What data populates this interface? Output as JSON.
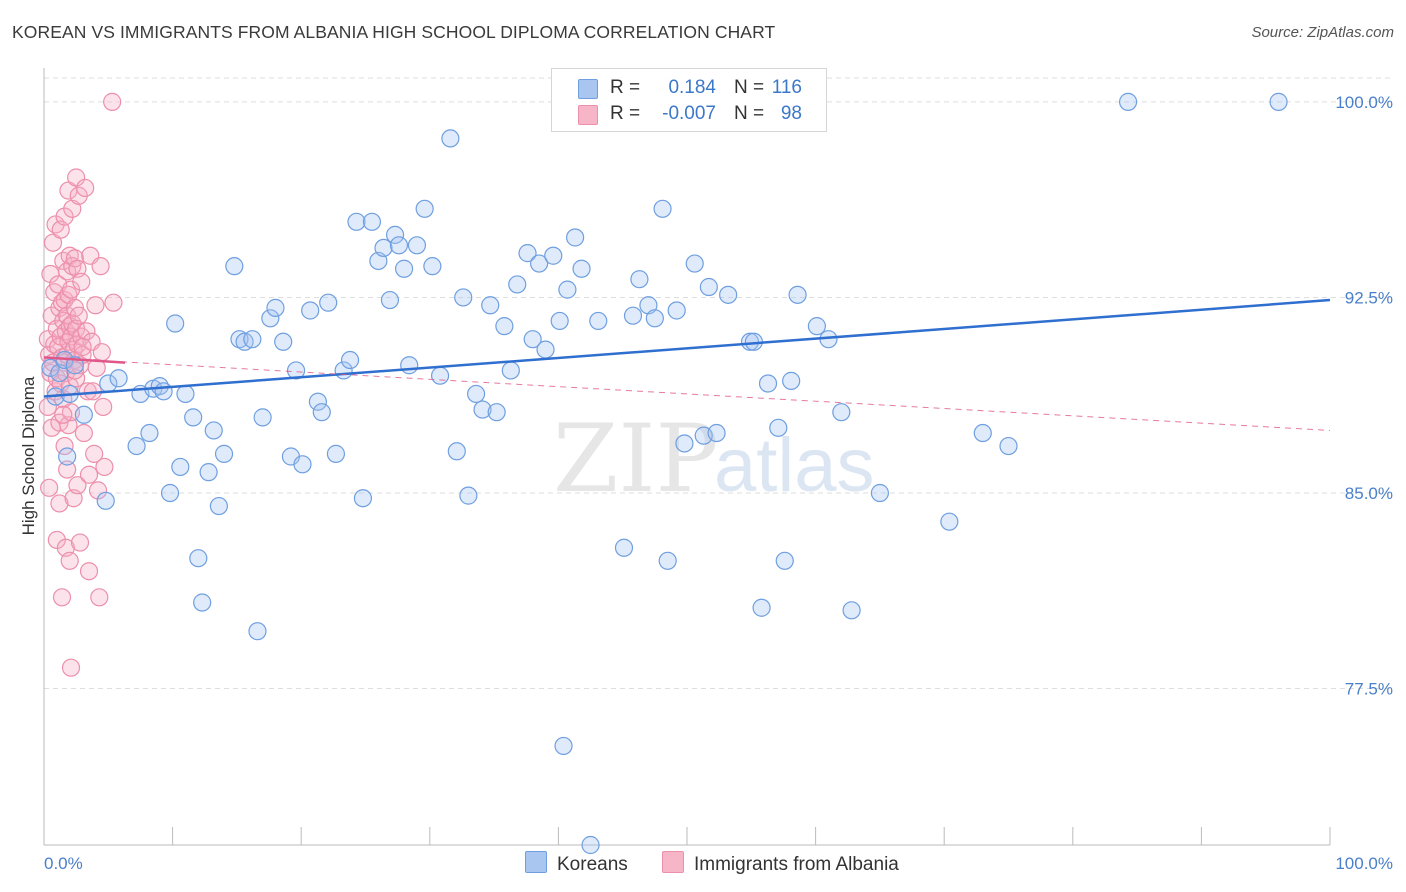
{
  "title": "KOREAN VS IMMIGRANTS FROM ALBANIA HIGH SCHOOL DIPLOMA CORRELATION CHART",
  "source": "Source: ZipAtlas.com",
  "watermark": {
    "zip": "ZIP",
    "atlas": "atlas"
  },
  "legend_top": [
    {
      "swatch_color": "#a8c6f0",
      "swatch_border": "#6f9fe0",
      "r_label": "R =",
      "r_value": "0.184",
      "n_label": "N =",
      "n_value": "116"
    },
    {
      "swatch_color": "#f6b6c8",
      "swatch_border": "#ec8fab",
      "r_label": "R =",
      "r_value": "-0.007",
      "n_label": "N =",
      "n_value": "98"
    }
  ],
  "legend_bottom": [
    {
      "label": "Koreans",
      "color": "#a8c6f0",
      "border": "#6f9fe0"
    },
    {
      "label": "Immigrants from Albania",
      "color": "#f6b6c8",
      "border": "#ec8fab"
    }
  ],
  "colors": {
    "koreans_fill": "rgba(164,196,240,0.35)",
    "koreans_stroke": "#6f9fe0",
    "koreans_line": "#2f6fcf",
    "albania_fill": "rgba(246,176,198,0.35)",
    "albania_stroke": "#ec8fab",
    "albania_line": "#e0588a",
    "tick_label": "#4a7fc9",
    "grid": "#dddddd"
  },
  "chart_data": {
    "type": "scatter",
    "title": "KOREAN VS IMMIGRANTS FROM ALBANIA HIGH SCHOOL DIPLOMA CORRELATION CHART",
    "xlabel": "",
    "ylabel": "High School Diploma",
    "xlim": [
      0,
      100
    ],
    "ylim": [
      71.5,
      101.3
    ],
    "x_tick_labels": [
      "0.0%",
      "100.0%"
    ],
    "y_ticks": [
      77.5,
      85.0,
      92.5,
      100.0
    ],
    "y_tick_labels": [
      "77.5%",
      "85.0%",
      "92.5%",
      "100.0%"
    ],
    "grid": true,
    "legend_placement": "top-center",
    "series": [
      {
        "name": "Koreans",
        "trend": {
          "x": [
            0,
            100
          ],
          "y": [
            88.7,
            92.4
          ],
          "style": "solid"
        },
        "points": [
          [
            0.5,
            89.8
          ],
          [
            0.9,
            88.7
          ],
          [
            1.2,
            89.6
          ],
          [
            1.6,
            90.1
          ],
          [
            2.0,
            88.8
          ],
          [
            2.4,
            89.9
          ],
          [
            3.1,
            88.0
          ],
          [
            4.8,
            84.7
          ],
          [
            1.8,
            86.4
          ],
          [
            5.0,
            89.2
          ],
          [
            5.8,
            89.4
          ],
          [
            7.2,
            86.8
          ],
          [
            7.5,
            88.8
          ],
          [
            8.2,
            87.3
          ],
          [
            8.5,
            89.0
          ],
          [
            9.0,
            89.1
          ],
          [
            9.3,
            88.9
          ],
          [
            9.8,
            85.0
          ],
          [
            10.2,
            91.5
          ],
          [
            10.6,
            86.0
          ],
          [
            11.0,
            88.8
          ],
          [
            11.6,
            87.9
          ],
          [
            12.0,
            82.5
          ],
          [
            12.3,
            80.8
          ],
          [
            12.8,
            85.8
          ],
          [
            13.2,
            87.4
          ],
          [
            13.6,
            84.5
          ],
          [
            14.0,
            86.5
          ],
          [
            14.8,
            93.7
          ],
          [
            15.2,
            90.9
          ],
          [
            15.6,
            90.8
          ],
          [
            16.2,
            90.9
          ],
          [
            16.6,
            79.7
          ],
          [
            17.0,
            87.9
          ],
          [
            17.6,
            91.7
          ],
          [
            18.0,
            92.1
          ],
          [
            18.6,
            90.8
          ],
          [
            19.2,
            86.4
          ],
          [
            19.6,
            89.7
          ],
          [
            20.1,
            86.1
          ],
          [
            20.7,
            92.0
          ],
          [
            21.3,
            88.5
          ],
          [
            21.6,
            88.1
          ],
          [
            22.1,
            92.3
          ],
          [
            22.7,
            86.5
          ],
          [
            23.3,
            89.7
          ],
          [
            23.8,
            90.1
          ],
          [
            24.3,
            95.4
          ],
          [
            24.8,
            84.8
          ],
          [
            25.5,
            95.4
          ],
          [
            26.0,
            93.9
          ],
          [
            26.4,
            94.4
          ],
          [
            26.9,
            92.4
          ],
          [
            27.3,
            94.9
          ],
          [
            27.6,
            94.5
          ],
          [
            28.0,
            93.6
          ],
          [
            28.4,
            89.9
          ],
          [
            29.0,
            94.5
          ],
          [
            29.6,
            95.9
          ],
          [
            30.2,
            93.7
          ],
          [
            30.8,
            89.5
          ],
          [
            31.6,
            98.6
          ],
          [
            32.1,
            86.6
          ],
          [
            32.6,
            92.5
          ],
          [
            33.0,
            84.9
          ],
          [
            33.6,
            88.8
          ],
          [
            34.1,
            88.2
          ],
          [
            34.7,
            92.2
          ],
          [
            35.2,
            88.1
          ],
          [
            35.8,
            91.4
          ],
          [
            36.3,
            89.7
          ],
          [
            36.8,
            93.0
          ],
          [
            37.6,
            94.2
          ],
          [
            38.0,
            90.9
          ],
          [
            38.5,
            93.8
          ],
          [
            39.0,
            90.5
          ],
          [
            39.6,
            94.1
          ],
          [
            40.1,
            91.6
          ],
          [
            40.7,
            92.8
          ],
          [
            41.3,
            94.8
          ],
          [
            41.8,
            93.6
          ],
          [
            43.1,
            91.6
          ],
          [
            45.1,
            82.9
          ],
          [
            45.8,
            91.8
          ],
          [
            46.3,
            93.2
          ],
          [
            47.0,
            92.2
          ],
          [
            47.5,
            91.7
          ],
          [
            48.1,
            95.9
          ],
          [
            48.5,
            82.4
          ],
          [
            49.2,
            92.0
          ],
          [
            49.8,
            86.9
          ],
          [
            50.6,
            93.8
          ],
          [
            51.3,
            87.2
          ],
          [
            51.7,
            92.9
          ],
          [
            52.3,
            87.3
          ],
          [
            53.2,
            92.6
          ],
          [
            54.9,
            90.8
          ],
          [
            55.2,
            90.8
          ],
          [
            55.8,
            80.6
          ],
          [
            56.3,
            89.2
          ],
          [
            57.1,
            87.5
          ],
          [
            57.6,
            82.4
          ],
          [
            58.1,
            89.3
          ],
          [
            58.6,
            92.6
          ],
          [
            60.1,
            91.4
          ],
          [
            61.0,
            90.9
          ],
          [
            62.0,
            88.1
          ],
          [
            62.8,
            80.5
          ],
          [
            65.0,
            85.0
          ],
          [
            70.4,
            83.9
          ],
          [
            73.0,
            87.3
          ],
          [
            75.0,
            86.8
          ],
          [
            84.3,
            100.0
          ],
          [
            96.0,
            100.0
          ],
          [
            42.5,
            71.5
          ],
          [
            40.4,
            75.3
          ]
        ]
      },
      {
        "name": "Immigrants from Albania",
        "trend": {
          "x": [
            0,
            100
          ],
          "y": [
            90.2,
            87.4
          ],
          "style": "dashed"
        },
        "trend_solid_segment": {
          "x": [
            0,
            6.3
          ],
          "y": [
            90.2,
            90.0
          ]
        },
        "points": [
          [
            0.3,
            88.3
          ],
          [
            0.3,
            90.9
          ],
          [
            0.4,
            85.2
          ],
          [
            0.4,
            90.3
          ],
          [
            0.5,
            93.4
          ],
          [
            0.5,
            89.6
          ],
          [
            0.6,
            87.5
          ],
          [
            0.6,
            91.8
          ],
          [
            0.7,
            94.6
          ],
          [
            0.7,
            90.0
          ],
          [
            0.8,
            90.7
          ],
          [
            0.8,
            92.7
          ],
          [
            0.9,
            95.3
          ],
          [
            0.9,
            88.9
          ],
          [
            1.0,
            91.3
          ],
          [
            1.0,
            89.4
          ],
          [
            1.0,
            83.2
          ],
          [
            1.1,
            93.0
          ],
          [
            1.1,
            90.6
          ],
          [
            1.2,
            92.1
          ],
          [
            1.2,
            87.7
          ],
          [
            1.2,
            84.6
          ],
          [
            1.3,
            95.1
          ],
          [
            1.3,
            91.0
          ],
          [
            1.3,
            89.2
          ],
          [
            1.4,
            92.3
          ],
          [
            1.4,
            90.2
          ],
          [
            1.4,
            81.0
          ],
          [
            1.5,
            93.9
          ],
          [
            1.5,
            91.6
          ],
          [
            1.5,
            88.6
          ],
          [
            1.6,
            95.6
          ],
          [
            1.6,
            92.4
          ],
          [
            1.6,
            90.0
          ],
          [
            1.6,
            86.8
          ],
          [
            1.7,
            91.2
          ],
          [
            1.7,
            89.6
          ],
          [
            1.7,
            82.9
          ],
          [
            1.8,
            93.5
          ],
          [
            1.8,
            91.8
          ],
          [
            1.8,
            90.3
          ],
          [
            1.8,
            85.9
          ],
          [
            1.9,
            96.6
          ],
          [
            1.9,
            92.6
          ],
          [
            1.9,
            90.8
          ],
          [
            1.9,
            87.6
          ],
          [
            2.0,
            94.1
          ],
          [
            2.0,
            91.4
          ],
          [
            2.0,
            89.1
          ],
          [
            2.0,
            82.4
          ],
          [
            2.1,
            92.8
          ],
          [
            2.1,
            91.0
          ],
          [
            2.1,
            88.1
          ],
          [
            2.1,
            78.3
          ],
          [
            2.2,
            95.9
          ],
          [
            2.2,
            93.7
          ],
          [
            2.2,
            91.5
          ],
          [
            2.3,
            90.5
          ],
          [
            2.3,
            84.8
          ],
          [
            2.4,
            94.0
          ],
          [
            2.4,
            92.1
          ],
          [
            2.4,
            90.1
          ],
          [
            2.5,
            97.1
          ],
          [
            2.5,
            91.3
          ],
          [
            2.5,
            89.4
          ],
          [
            2.6,
            93.6
          ],
          [
            2.6,
            90.7
          ],
          [
            2.6,
            85.3
          ],
          [
            2.7,
            96.4
          ],
          [
            2.7,
            91.8
          ],
          [
            2.8,
            89.9
          ],
          [
            2.8,
            83.1
          ],
          [
            2.9,
            93.1
          ],
          [
            2.9,
            91.0
          ],
          [
            3.0,
            90.3
          ],
          [
            3.1,
            87.3
          ],
          [
            3.2,
            96.7
          ],
          [
            3.3,
            91.2
          ],
          [
            3.4,
            88.9
          ],
          [
            3.5,
            85.7
          ],
          [
            3.5,
            82.0
          ],
          [
            3.6,
            94.1
          ],
          [
            3.7,
            90.8
          ],
          [
            3.8,
            88.9
          ],
          [
            3.9,
            86.5
          ],
          [
            4.0,
            92.2
          ],
          [
            4.1,
            89.8
          ],
          [
            4.2,
            85.1
          ],
          [
            4.3,
            81.0
          ],
          [
            4.4,
            93.7
          ],
          [
            4.5,
            90.4
          ],
          [
            4.6,
            88.3
          ],
          [
            4.7,
            86.0
          ],
          [
            1.5,
            88.0
          ],
          [
            2.4,
            89.7
          ],
          [
            3.0,
            90.6
          ],
          [
            5.4,
            92.3
          ],
          [
            5.3,
            100.0
          ]
        ]
      }
    ]
  }
}
